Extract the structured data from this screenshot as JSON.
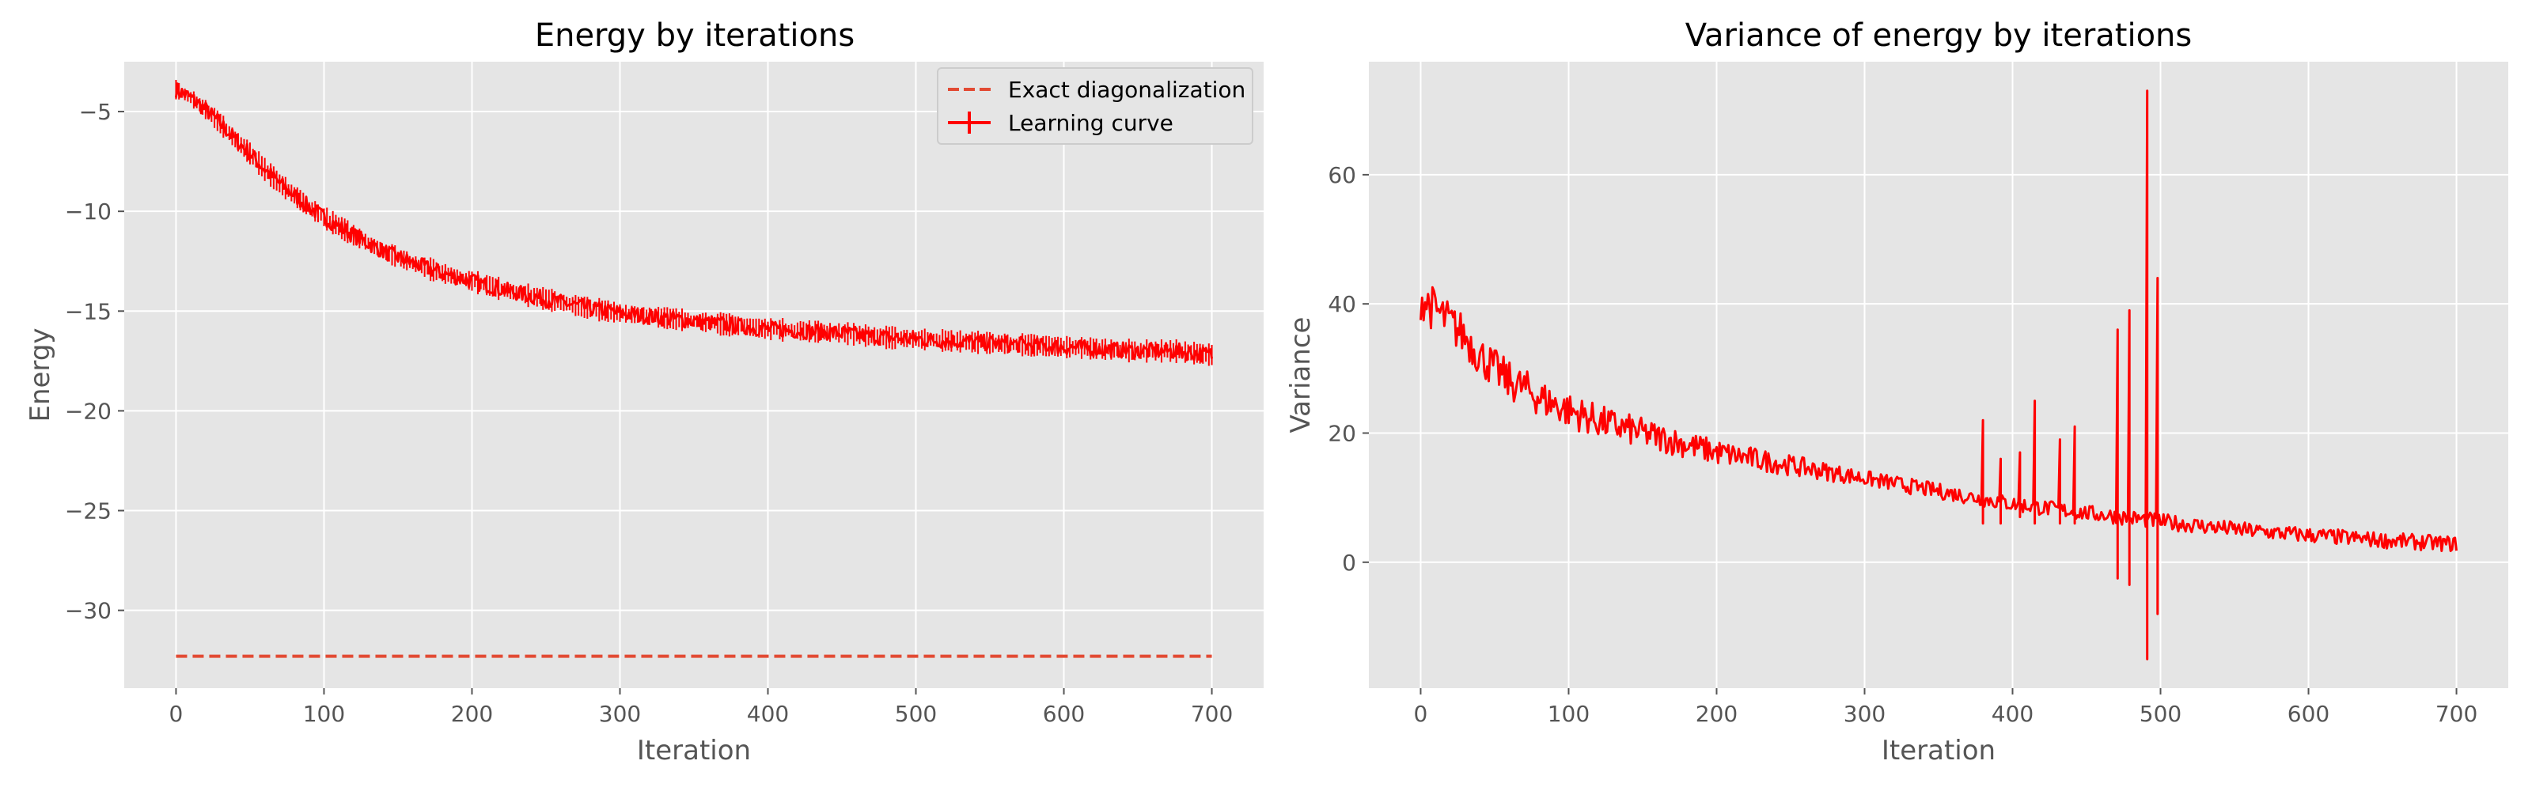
{
  "figure": {
    "background": "#ffffff",
    "panel_background": "#e5e5e5",
    "grid_color": "#ffffff",
    "style": "ggplot"
  },
  "chart_data": [
    {
      "type": "line",
      "title": "Energy by iterations",
      "xlabel": "Iteration",
      "ylabel": "Energy",
      "xlim": [
        -35,
        735
      ],
      "ylim": [
        -33.9,
        -2.5
      ],
      "xticks": [
        0,
        100,
        200,
        300,
        400,
        500,
        600,
        700
      ],
      "xtick_labels": [
        "0",
        "100",
        "200",
        "300",
        "400",
        "500",
        "600",
        "700"
      ],
      "yticks": [
        -5,
        -10,
        -15,
        -20,
        -25,
        -30
      ],
      "ytick_labels": [
        "−5",
        "−10",
        "−15",
        "−20",
        "−25",
        "−30"
      ],
      "grid": true,
      "legend": {
        "placement": "top-right",
        "entries": [
          "Exact diagonalization",
          "Learning curve"
        ]
      },
      "series": [
        {
          "name": "Exact diagonalization",
          "style": "dashed",
          "color": "#e24a33",
          "x": [
            0,
            700
          ],
          "y": [
            -32.3,
            -32.3
          ]
        },
        {
          "name": "Learning curve",
          "style": "solid-errorbar",
          "color": "#ff0000",
          "x": [
            0,
            10,
            20,
            30,
            40,
            50,
            60,
            70,
            80,
            90,
            100,
            120,
            140,
            160,
            180,
            200,
            225,
            250,
            275,
            300,
            325,
            350,
            375,
            400,
            425,
            450,
            475,
            500,
            525,
            550,
            575,
            600,
            625,
            650,
            675,
            700
          ],
          "y": [
            -3.9,
            -4.3,
            -4.9,
            -5.6,
            -6.4,
            -7.1,
            -7.9,
            -8.6,
            -9.2,
            -9.8,
            -10.3,
            -11.2,
            -12.0,
            -12.6,
            -13.1,
            -13.5,
            -14.0,
            -14.4,
            -14.8,
            -15.1,
            -15.3,
            -15.5,
            -15.7,
            -15.9,
            -16.0,
            -16.1,
            -16.3,
            -16.4,
            -16.5,
            -16.6,
            -16.7,
            -16.8,
            -16.9,
            -17.0,
            -17.0,
            -17.2
          ],
          "noise_amplitude": 0.4
        }
      ]
    },
    {
      "type": "line",
      "title": "Variance of energy by iterations",
      "xlabel": "Iteration",
      "ylabel": "Variance",
      "xlim": [
        -35,
        735
      ],
      "ylim": [
        -19.5,
        77.5
      ],
      "xticks": [
        0,
        100,
        200,
        300,
        400,
        500,
        600,
        700
      ],
      "xtick_labels": [
        "0",
        "100",
        "200",
        "300",
        "400",
        "500",
        "600",
        "700"
      ],
      "yticks": [
        0,
        20,
        40,
        60
      ],
      "ytick_labels": [
        "0",
        "20",
        "40",
        "60"
      ],
      "grid": true,
      "series": [
        {
          "style": "solid",
          "color": "#ff0000",
          "x": [
            0,
            10,
            20,
            30,
            40,
            50,
            60,
            70,
            80,
            90,
            100,
            125,
            150,
            175,
            200,
            225,
            250,
            275,
            300,
            325,
            350,
            375,
            400,
            425,
            450,
            475,
            500,
            525,
            550,
            575,
            600,
            625,
            650,
            675,
            700
          ],
          "y": [
            41,
            39,
            37,
            35,
            32,
            30,
            28,
            27,
            25.5,
            24.5,
            23.5,
            21.5,
            20,
            18.5,
            17,
            16,
            15,
            14,
            13,
            12,
            11,
            10,
            9,
            8.3,
            7.6,
            7,
            6.3,
            5.7,
            5.1,
            4.6,
            4.2,
            3.8,
            3.4,
            3.1,
            2.8
          ],
          "noise_amplitude": 3.5,
          "spikes": [
            {
              "x": 380,
              "high": 22,
              "low": 6
            },
            {
              "x": 392,
              "high": 16,
              "low": 6
            },
            {
              "x": 405,
              "high": 17,
              "low": 7
            },
            {
              "x": 415,
              "high": 25,
              "low": 6
            },
            {
              "x": 432,
              "high": 19,
              "low": 6
            },
            {
              "x": 442,
              "high": 21,
              "low": 6
            },
            {
              "x": 471,
              "high": 36,
              "low": -2.5
            },
            {
              "x": 479,
              "high": 39,
              "low": -3.5
            },
            {
              "x": 491,
              "high": 73,
              "low": -15
            },
            {
              "x": 498,
              "high": 44,
              "low": -8
            }
          ]
        }
      ]
    }
  ]
}
